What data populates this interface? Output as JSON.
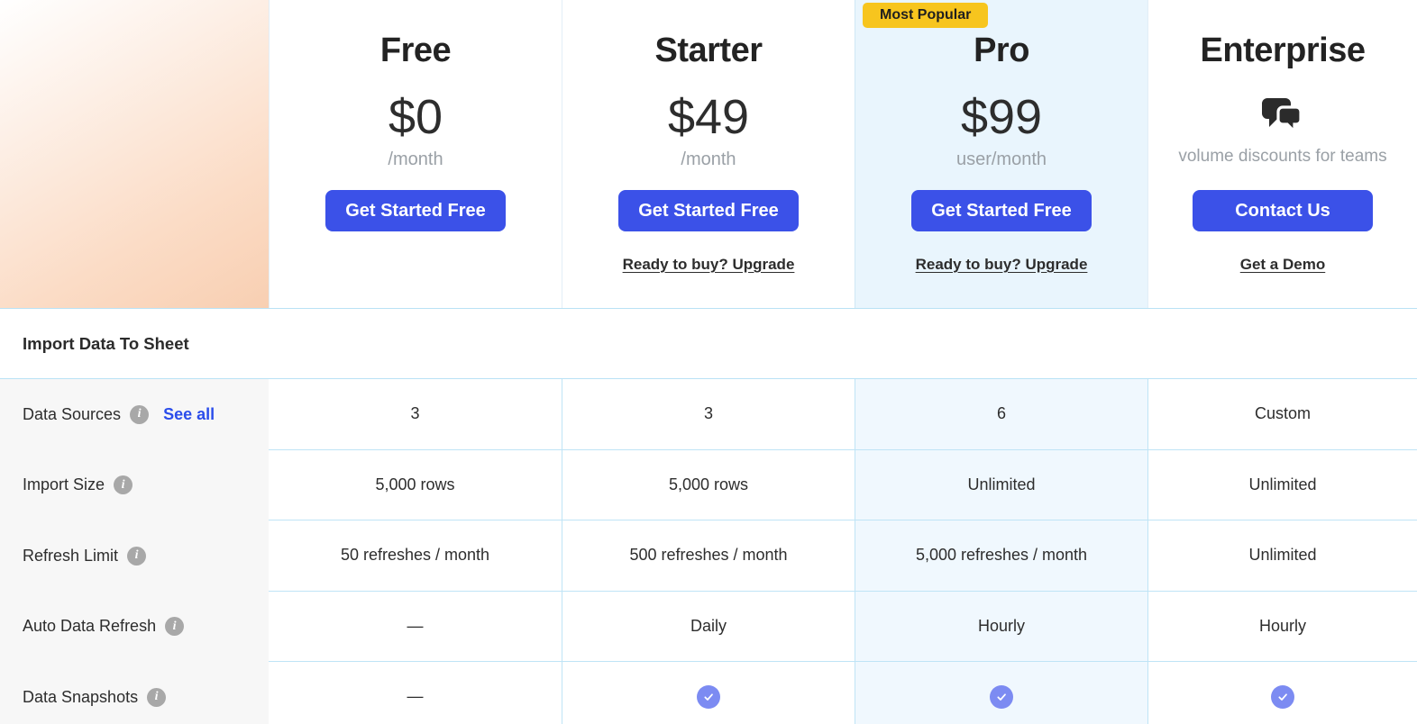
{
  "colors": {
    "accent_blue": "#3b51e8",
    "badge_yellow": "#f7c51e",
    "check_purple": "#7c8bf2",
    "pro_highlight_tint": "#e9f5fd",
    "row_border_blue": "#bfe4f6",
    "sidebar_gray": "#f7f7f7",
    "text_dark": "#2d2d2d",
    "text_gray": "#9aa0a6"
  },
  "icons": {
    "info": "i",
    "check": "✓",
    "enterprise": "chat-bubbles"
  },
  "plans": [
    {
      "name": "Free",
      "price": "$0",
      "period": "/month",
      "cta": "Get Started Free",
      "secondary_link": null,
      "highlight": false
    },
    {
      "name": "Starter",
      "price": "$49",
      "period": "/month",
      "cta": "Get Started Free",
      "secondary_link": "Ready to buy? Upgrade",
      "highlight": false
    },
    {
      "name": "Pro",
      "badge": "Most Popular",
      "price": "$99",
      "period": "user/month",
      "cta": "Get Started Free",
      "secondary_link": "Ready to buy? Upgrade",
      "highlight": true
    },
    {
      "name": "Enterprise",
      "price": null,
      "tagline": "volume discounts for teams",
      "cta": "Contact Us",
      "secondary_link": "Get a Demo",
      "highlight": false
    }
  ],
  "section": {
    "title": "Import Data To Sheet"
  },
  "features": [
    {
      "label": "Data Sources",
      "has_info": true,
      "link": "See all",
      "values": [
        "3",
        "3",
        "6",
        "Custom"
      ]
    },
    {
      "label": "Import Size",
      "has_info": true,
      "link": null,
      "values": [
        "5,000 rows",
        "5,000 rows",
        "Unlimited",
        "Unlimited"
      ]
    },
    {
      "label": "Refresh Limit",
      "has_info": true,
      "link": null,
      "values": [
        "50 refreshes / month",
        "500 refreshes / month",
        "5,000 refreshes / month",
        "Unlimited"
      ]
    },
    {
      "label": "Auto Data Refresh",
      "has_info": true,
      "link": null,
      "values": [
        "—",
        "Daily",
        "Hourly",
        "Hourly"
      ]
    },
    {
      "label": "Data Snapshots",
      "has_info": true,
      "link": null,
      "values": [
        "—",
        "check",
        "check",
        "check"
      ]
    }
  ]
}
